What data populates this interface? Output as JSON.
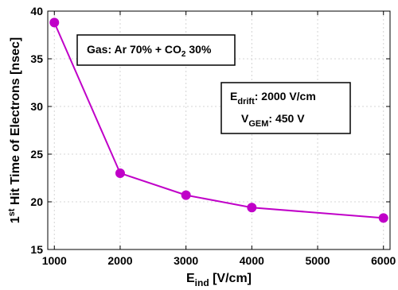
{
  "chart_data": {
    "type": "line",
    "title": "",
    "xlabel": {
      "main": "E",
      "sub": "ind",
      "rest": " [V/cm]"
    },
    "ylabel": {
      "pre": "1",
      "sup": "st",
      "rest": " Hit Time of Electrons [nsec]"
    },
    "xlim": [
      900,
      6100
    ],
    "ylim": [
      15,
      40
    ],
    "x_ticks": [
      1000,
      2000,
      3000,
      4000,
      5000,
      6000
    ],
    "y_ticks": [
      15,
      20,
      25,
      30,
      35,
      40
    ],
    "grid": true,
    "series": [
      {
        "color": "#c000c8",
        "x": [
          1000,
          2000,
          3000,
          4000,
          6000
        ],
        "y": [
          38.8,
          23.0,
          20.7,
          19.4,
          18.3
        ]
      }
    ],
    "annotations": {
      "gas": {
        "text": "Gas: Ar 70% + CO",
        "sub": "2",
        "rest": " 30%"
      },
      "edrift": {
        "main": "E",
        "sub": "drift",
        "rest": ": 2000 V/cm"
      },
      "vgem": {
        "main": "V",
        "sub": "GEM",
        "rest": ": 450 V"
      }
    }
  }
}
